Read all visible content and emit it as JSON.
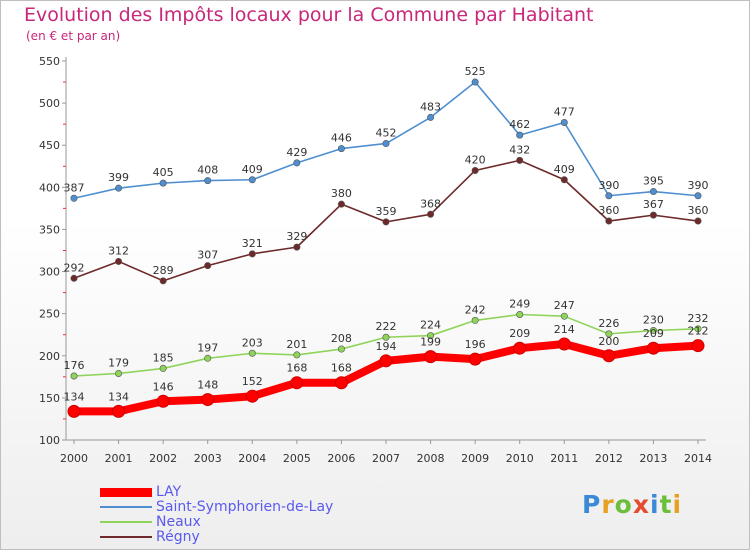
{
  "title": "Evolution des Impôts locaux pour la Commune par Habitant",
  "subtitle": "(en € et par an)",
  "logo": {
    "text": "Proxiti",
    "colors": [
      "#3b8ad8",
      "#e8a020",
      "#6cbf3c",
      "#e44b2f",
      "#3b8ad8",
      "#6cbf3c",
      "#e8a020"
    ]
  },
  "chart_data": {
    "type": "line",
    "title": "Evolution des Impôts locaux pour la Commune par Habitant",
    "subtitle": "(en € et par an)",
    "xlabel": "",
    "ylabel": "",
    "x": [
      "2000",
      "2001",
      "2002",
      "2003",
      "2004",
      "2005",
      "2006",
      "2007",
      "2008",
      "2009",
      "2010",
      "2011",
      "2012",
      "2013",
      "2014"
    ],
    "ylim": [
      100,
      550
    ],
    "yticks": [
      100,
      150,
      200,
      250,
      300,
      350,
      400,
      450,
      500,
      550
    ],
    "grid": false,
    "legend_position": "bottom-left",
    "series": [
      {
        "name": "LAY",
        "color": "#ff0000",
        "values": [
          134,
          134,
          146,
          148,
          152,
          168,
          168,
          194,
          199,
          196,
          209,
          214,
          200,
          209,
          212
        ]
      },
      {
        "name": "Saint-Symphorien-de-Lay",
        "color": "#4f8fd0",
        "values": [
          387,
          399,
          405,
          408,
          409,
          429,
          446,
          452,
          483,
          525,
          462,
          477,
          390,
          395,
          390
        ]
      },
      {
        "name": "Neaux",
        "color": "#8fd45a",
        "values": [
          176,
          179,
          185,
          197,
          203,
          201,
          208,
          222,
          224,
          242,
          249,
          247,
          226,
          230,
          232
        ]
      },
      {
        "name": "Régny",
        "color": "#6e2a2a",
        "values": [
          292,
          312,
          289,
          307,
          321,
          329,
          380,
          359,
          368,
          420,
          432,
          409,
          360,
          367,
          360
        ]
      }
    ]
  }
}
